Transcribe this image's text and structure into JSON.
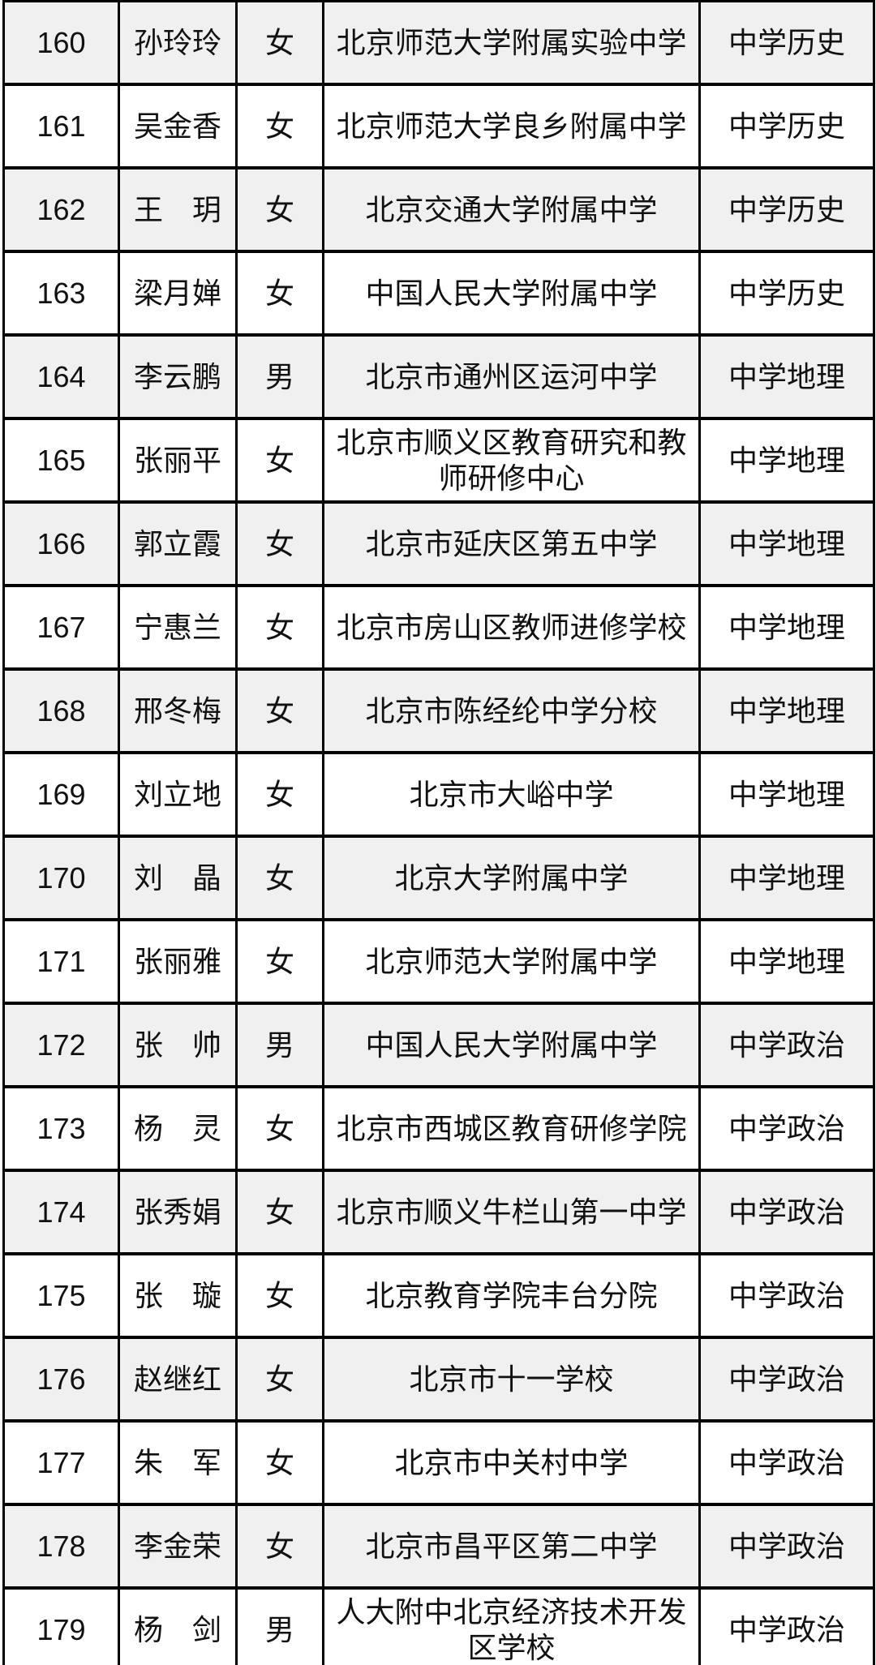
{
  "colors": {
    "row_alt_background": "#f0f0f0",
    "row_background": "#ffffff",
    "border": "#000000",
    "text": "#111111"
  },
  "table": {
    "rows": [
      {
        "no": "160",
        "name": "孙玲玲",
        "gender": "女",
        "school": "北京师范大学附属实验中学",
        "subject": "中学历史"
      },
      {
        "no": "161",
        "name": "吴金香",
        "gender": "女",
        "school": "北京师范大学良乡附属中学",
        "subject": "中学历史"
      },
      {
        "no": "162",
        "name": "王　玥",
        "gender": "女",
        "school": "北京交通大学附属中学",
        "subject": "中学历史"
      },
      {
        "no": "163",
        "name": "梁月婵",
        "gender": "女",
        "school": "中国人民大学附属中学",
        "subject": "中学历史"
      },
      {
        "no": "164",
        "name": "李云鹏",
        "gender": "男",
        "school": "北京市通州区运河中学",
        "subject": "中学地理"
      },
      {
        "no": "165",
        "name": "张丽平",
        "gender": "女",
        "school": "北京市顺义区教育研究和教\n师研修中心",
        "subject": "中学地理"
      },
      {
        "no": "166",
        "name": "郭立霞",
        "gender": "女",
        "school": "北京市延庆区第五中学",
        "subject": "中学地理"
      },
      {
        "no": "167",
        "name": "宁惠兰",
        "gender": "女",
        "school": "北京市房山区教师进修学校",
        "subject": "中学地理"
      },
      {
        "no": "168",
        "name": "邢冬梅",
        "gender": "女",
        "school": "北京市陈经纶中学分校",
        "subject": "中学地理"
      },
      {
        "no": "169",
        "name": "刘立地",
        "gender": "女",
        "school": "北京市大峪中学",
        "subject": "中学地理"
      },
      {
        "no": "170",
        "name": "刘　晶",
        "gender": "女",
        "school": "北京大学附属中学",
        "subject": "中学地理"
      },
      {
        "no": "171",
        "name": "张丽雅",
        "gender": "女",
        "school": "北京师范大学附属中学",
        "subject": "中学地理"
      },
      {
        "no": "172",
        "name": "张　帅",
        "gender": "男",
        "school": "中国人民大学附属中学",
        "subject": "中学政治"
      },
      {
        "no": "173",
        "name": "杨　灵",
        "gender": "女",
        "school": "北京市西城区教育研修学院",
        "subject": "中学政治"
      },
      {
        "no": "174",
        "name": "张秀娟",
        "gender": "女",
        "school": "北京市顺义牛栏山第一中学",
        "subject": "中学政治"
      },
      {
        "no": "175",
        "name": "张　璇",
        "gender": "女",
        "school": "北京教育学院丰台分院",
        "subject": "中学政治"
      },
      {
        "no": "176",
        "name": "赵继红",
        "gender": "女",
        "school": "北京市十一学校",
        "subject": "中学政治"
      },
      {
        "no": "177",
        "name": "朱　军",
        "gender": "女",
        "school": "北京市中关村中学",
        "subject": "中学政治"
      },
      {
        "no": "178",
        "name": "李金荣",
        "gender": "女",
        "school": "北京市昌平区第二中学",
        "subject": "中学政治"
      },
      {
        "no": "179",
        "name": "杨　剑",
        "gender": "男",
        "school": "人大附中北京经济技术开发\n区学校",
        "subject": "中学政治"
      }
    ]
  }
}
